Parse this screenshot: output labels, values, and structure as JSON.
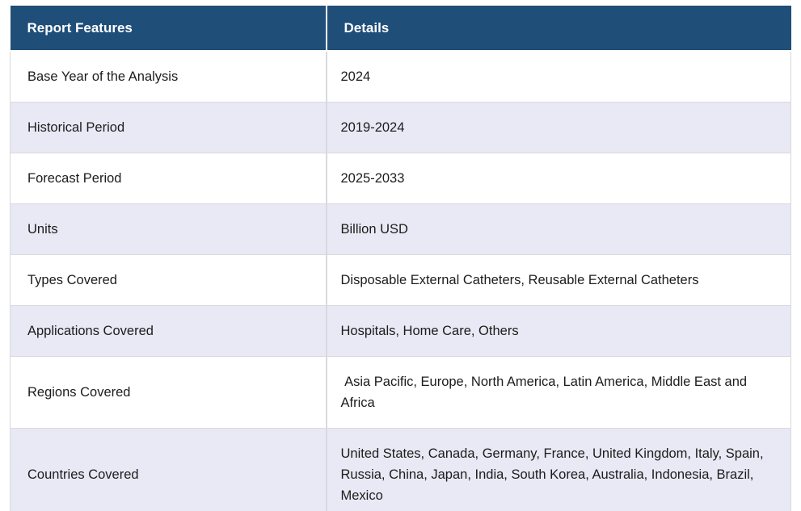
{
  "page": {
    "background_color": "#ffffff"
  },
  "table": {
    "style": {
      "header_bg": "#1f4e79",
      "header_text_color": "#ffffff",
      "row_bg": "#ffffff",
      "row_alt_bg": "#e8e9f4",
      "border_color": "#d9d9de",
      "body_text_color": "#1c1c1c"
    },
    "header": {
      "feature_label": "Report Features",
      "details_label": "Details"
    },
    "rows": [
      {
        "feature": "Base Year of the Analysis",
        "details": "2024"
      },
      {
        "feature": "Historical Period",
        "details": "2019-2024"
      },
      {
        "feature": "Forecast Period",
        "details": "2025-2033"
      },
      {
        "feature": "Units",
        "details": "Billion USD"
      },
      {
        "feature": "Types Covered",
        "details": "Disposable External Catheters, Reusable External Catheters"
      },
      {
        "feature": "Applications Covered",
        "details": "Hospitals, Home Care, Others"
      },
      {
        "feature": "Regions Covered",
        "details": " Asia Pacific, Europe, North America, Latin America, Middle East and Africa"
      },
      {
        "feature": "Countries Covered",
        "details": "United States, Canada, Germany, France, United Kingdom, Italy, Spain, Russia, China, Japan, India, South Korea, Australia, Indonesia, Brazil, Mexico"
      }
    ]
  }
}
